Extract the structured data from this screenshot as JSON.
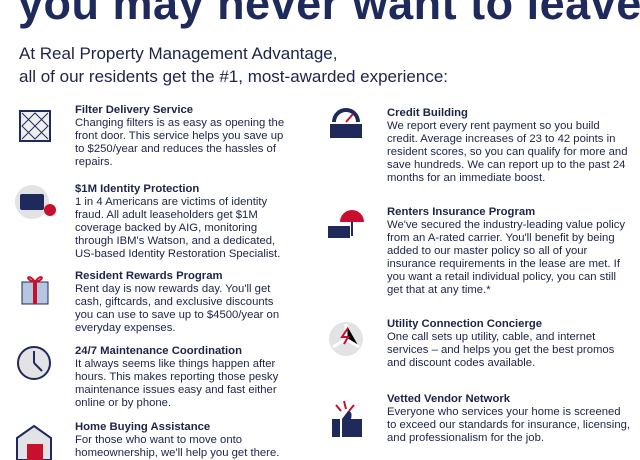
{
  "headline": "you may never want to leave.",
  "intro": [
    "At Real Property Management Advantage,",
    "all of our residents get the #1, most-awarded experience:"
  ],
  "left": [
    {
      "title": "Filter Delivery Service",
      "text": "Changing filters is as easy as opening the front door. This service helps you save up to $250/year and reduces the hassles of repairs."
    },
    {
      "title": "$1M Identity Protection",
      "text": "1 in 4 Americans are victims of identity fraud. All adult leaseholders get $1M coverage backed by AIG, monitoring through IBM's Watson, and a dedicated, US-based Identity Restoration Specialist."
    },
    {
      "title": "Resident Rewards Program",
      "text": "Rent day is now rewards day. You'll get cash, giftcards, and exclusive discounts you can use to save up to $4500/year on everyday expenses."
    },
    {
      "title": "24/7 Maintenance Coordination",
      "text": "It always seems like things happen after hours. This makes reporting those pesky maintenance issues easy and fast either online or by phone."
    },
    {
      "title": "Home Buying Assistance",
      "text": "For those who want to move onto homeownership, we'll help you get there."
    }
  ],
  "right": [
    {
      "title": "Credit Building",
      "text": "We report every rent payment so you build credit. Average increases of 23 to 42 points in resident scores, so you can qualify for more and save hundreds. We can report up to the past 24 months for an immediate boost."
    },
    {
      "title": "Renters Insurance Program",
      "text": "We've secured the industry-leading value policy from an A-rated carrier. You'll benefit by being added to our master policy so all of your insurance requirements in the lease are met. If you want a retail individual policy, you can still get that at any time.*"
    },
    {
      "title": "Utility Connection Concierge",
      "text": "One call sets up utility, cable, and internet services – and helps you get the best promos and discount codes available."
    },
    {
      "title": "Vetted Vendor Network",
      "text": "Everyone who services your home is screened to exceed our standards for insurance, licensing, and professionalism for the job."
    }
  ]
}
